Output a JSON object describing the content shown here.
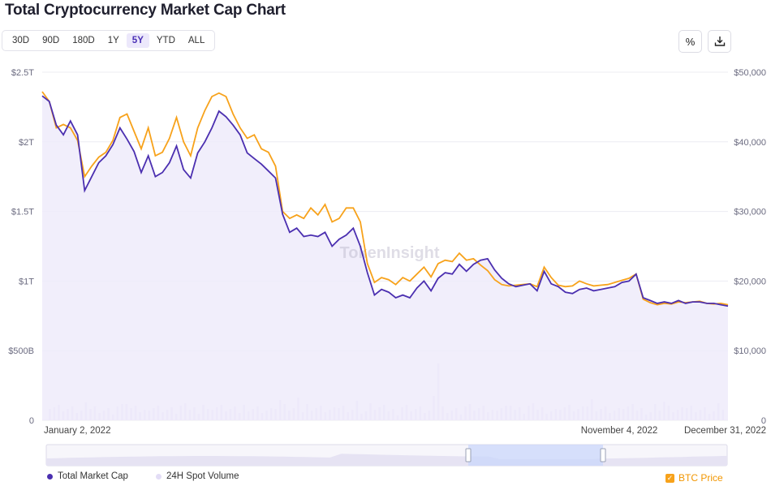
{
  "title": "Total Cryptocurrency Market Cap Chart",
  "range_buttons": [
    "30D",
    "90D",
    "180D",
    "1Y",
    "5Y",
    "YTD",
    "ALL"
  ],
  "active_range": "5Y",
  "tools": {
    "percent_icon": "%",
    "download_icon": "download-icon"
  },
  "legend": {
    "market_cap": "Total Market Cap",
    "volume": "24H Spot Volume",
    "btc": "BTC Price"
  },
  "watermark": "TokenInsight",
  "colors": {
    "market_cap": "#4b2fb0",
    "btc": "#f7a21b",
    "volume": "#e3ddf6",
    "fill": "#efebfa"
  },
  "chart_data": {
    "type": "line",
    "title": "Total Cryptocurrency Market Cap Chart",
    "y_left_ticks": [
      "0",
      "$500B",
      "$1T",
      "$1.5T",
      "$2T",
      "$2.5T"
    ],
    "y_left_range": [
      0,
      2.5
    ],
    "y_left_unit": "T",
    "y_right_ticks": [
      "0",
      "$10,000",
      "$20,000",
      "$30,000",
      "$40,000",
      "$50,000"
    ],
    "y_right_range": [
      0,
      50000
    ],
    "x_ticks": [
      "January 2, 2022",
      "November 4, 2022",
      "December 31, 2022"
    ],
    "series": [
      {
        "name": "Total Market Cap",
        "axis": "left",
        "values": [
          2.33,
          2.29,
          2.12,
          2.05,
          2.15,
          2.05,
          1.65,
          1.75,
          1.85,
          1.9,
          1.98,
          2.1,
          2.02,
          1.93,
          1.78,
          1.9,
          1.75,
          1.78,
          1.85,
          1.97,
          1.8,
          1.74,
          1.92,
          2.0,
          2.1,
          2.22,
          2.18,
          2.12,
          2.05,
          1.92,
          1.88,
          1.84,
          1.79,
          1.74,
          1.48,
          1.35,
          1.38,
          1.32,
          1.33,
          1.32,
          1.35,
          1.25,
          1.3,
          1.33,
          1.38,
          1.25,
          1.06,
          0.9,
          0.94,
          0.92,
          0.88,
          0.9,
          0.88,
          0.95,
          1.0,
          0.93,
          1.02,
          1.06,
          1.05,
          1.12,
          1.07,
          1.12,
          1.15,
          1.16,
          1.08,
          1.02,
          0.98,
          0.96,
          0.97,
          0.98,
          0.93,
          1.07,
          0.98,
          0.96,
          0.92,
          0.91,
          0.94,
          0.95,
          0.93,
          0.94,
          0.95,
          0.96,
          0.99,
          1.0,
          1.05,
          0.88,
          0.86,
          0.84,
          0.85,
          0.84,
          0.86,
          0.84,
          0.85,
          0.85,
          0.84,
          0.84,
          0.83,
          0.82
        ],
        "x_start": "January 2, 2022",
        "x_end": "December 31, 2022"
      },
      {
        "name": "BTC Price",
        "axis": "right",
        "values": [
          47200,
          45800,
          42000,
          42500,
          42000,
          40200,
          35000,
          36500,
          37800,
          38500,
          40200,
          43500,
          44000,
          41500,
          39000,
          42000,
          38000,
          38500,
          40500,
          43500,
          40000,
          38000,
          42000,
          44500,
          46500,
          47000,
          46500,
          44000,
          42000,
          40500,
          41000,
          39000,
          38500,
          36500,
          30000,
          29000,
          29500,
          29000,
          30500,
          29500,
          31000,
          28500,
          29000,
          30500,
          30500,
          28500,
          22500,
          19800,
          20500,
          20200,
          19500,
          20500,
          20000,
          21000,
          22000,
          20600,
          22500,
          23000,
          22800,
          24000,
          23000,
          23200,
          22300,
          21500,
          20200,
          19500,
          19300,
          19400,
          19500,
          19600,
          19200,
          22000,
          20500,
          19400,
          19200,
          19300,
          20000,
          19600,
          19300,
          19400,
          19500,
          19800,
          20100,
          20400,
          21000,
          17400,
          16900,
          16600,
          16800,
          16700,
          17000,
          16900,
          17000,
          17100,
          16800,
          16700,
          16800,
          16600
        ],
        "x_start": "January 2, 2022",
        "x_end": "December 31, 2022"
      }
    ],
    "volume_note": "24H Spot Volume bars",
    "grid": true,
    "legend_position": "bottom"
  }
}
